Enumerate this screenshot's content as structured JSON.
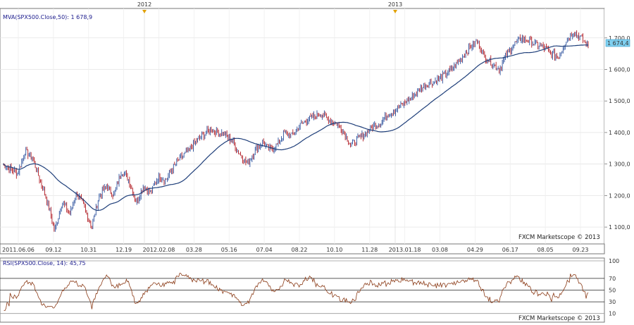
{
  "chart_data": [
    {
      "type": "candlestick",
      "indicator_label": "MVA(SPX500.Close,50): 1 678,9",
      "last_price_tag": "1 674,4",
      "watermark": "FXCM Marketscope © 2013",
      "year_markers": [
        "2012",
        "2013"
      ],
      "ylim": [
        1060,
        1780
      ],
      "y_ticks": [
        "1 100,0",
        "1 200,0",
        "1 300,0",
        "1 400,0",
        "1 500,0",
        "1 600,0",
        "1 700,0"
      ],
      "date_ticks": [
        "2011.06.06",
        "09.12",
        "10.31",
        "12.19",
        "2012.02.08",
        "03.28",
        "05.16",
        "07.04",
        "08.22",
        "10.10",
        "11.28",
        "2013.01.18",
        "03.08",
        "04.29",
        "06.17",
        "08.05",
        "09.23"
      ],
      "price_series": [
        1300,
        1285,
        1270,
        1340,
        1320,
        1250,
        1180,
        1090,
        1180,
        1140,
        1210,
        1160,
        1100,
        1200,
        1230,
        1200,
        1280,
        1250,
        1180,
        1230,
        1210,
        1260,
        1250,
        1290,
        1320,
        1340,
        1370,
        1390,
        1410,
        1400,
        1395,
        1370,
        1330,
        1300,
        1340,
        1370,
        1345,
        1360,
        1400,
        1390,
        1420,
        1440,
        1450,
        1460,
        1440,
        1430,
        1400,
        1360,
        1380,
        1400,
        1420,
        1430,
        1460,
        1470,
        1490,
        1510,
        1530,
        1550,
        1560,
        1570,
        1590,
        1610,
        1640,
        1670,
        1690,
        1640,
        1620,
        1600,
        1650,
        1680,
        1700,
        1690,
        1680,
        1670,
        1650,
        1640,
        1690,
        1720,
        1700,
        1674.4
      ],
      "mva_label": "MVA(50)",
      "mva_last": 1678.9
    },
    {
      "type": "line",
      "indicator_label": "RSI(SPX500.Close, 14): 45,75",
      "ylim": [
        0,
        100
      ],
      "y_ticks": [
        "10",
        "30",
        "50",
        "70",
        "100"
      ],
      "rsi_last": 45.75
    }
  ]
}
